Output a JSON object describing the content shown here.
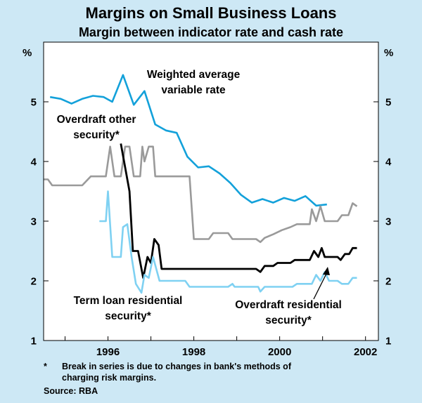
{
  "titles": {
    "title": "Margins on Small Business Loans",
    "subtitle": "Margin between indicator rate and cash rate"
  },
  "footnote": {
    "marker": "*",
    "line1": "Break in series is due to changes in bank's methods of",
    "line2": "charging risk margins."
  },
  "source": "Source: RBA",
  "colors": {
    "background": "#cde8f5",
    "plot_background": "#ffffff",
    "weighted": "#13a1da",
    "overdraft_other": "#9a9a9a",
    "overdraft_residential": "#000000",
    "term_loan_residential": "#7fd1f2"
  },
  "chart_data": {
    "type": "line",
    "title": "Margins on Small Business Loans",
    "subtitle": "Margin between indicator rate and cash rate",
    "ylabel_left": "%",
    "ylabel_right": "%",
    "ylim": [
      1,
      6
    ],
    "yticks": [
      1,
      2,
      3,
      4,
      5
    ],
    "xlim": [
      1994.5,
      2002.3
    ],
    "xticks": [
      1996,
      1998,
      2000,
      2002
    ],
    "grid": false,
    "series": [
      {
        "name": "Weighted average variable rate",
        "label_lines": [
          "Weighted average",
          "variable rate"
        ],
        "color_key": "weighted",
        "points": [
          [
            1994.65,
            5.08
          ],
          [
            1994.9,
            5.05
          ],
          [
            1995.15,
            4.97
          ],
          [
            1995.4,
            5.05
          ],
          [
            1995.65,
            5.1
          ],
          [
            1995.9,
            5.08
          ],
          [
            1996.1,
            5.0
          ],
          [
            1996.35,
            5.45
          ],
          [
            1996.6,
            4.95
          ],
          [
            1996.85,
            5.18
          ],
          [
            1997.1,
            4.62
          ],
          [
            1997.35,
            4.52
          ],
          [
            1997.6,
            4.48
          ],
          [
            1997.85,
            4.08
          ],
          [
            1998.1,
            3.9
          ],
          [
            1998.35,
            3.92
          ],
          [
            1998.6,
            3.8
          ],
          [
            1998.85,
            3.64
          ],
          [
            1999.1,
            3.44
          ],
          [
            1999.35,
            3.31
          ],
          [
            1999.6,
            3.37
          ],
          [
            1999.85,
            3.31
          ],
          [
            2000.1,
            3.39
          ],
          [
            2000.35,
            3.34
          ],
          [
            2000.6,
            3.42
          ],
          [
            2000.85,
            3.26
          ],
          [
            2001.1,
            3.28
          ]
        ]
      },
      {
        "name": "Overdraft other security*",
        "label_lines": [
          "Overdraft other",
          "security*"
        ],
        "color_key": "overdraft_other",
        "points": [
          [
            1994.5,
            3.7
          ],
          [
            1994.6,
            3.7
          ],
          [
            1994.7,
            3.6
          ],
          [
            1995.4,
            3.6
          ],
          [
            1995.6,
            3.75
          ],
          [
            1995.95,
            3.75
          ],
          [
            1996.05,
            4.25
          ],
          [
            1996.15,
            3.75
          ],
          [
            1996.3,
            3.75
          ],
          [
            1996.4,
            4.25
          ],
          [
            1996.5,
            4.25
          ],
          [
            1996.6,
            3.75
          ],
          [
            1996.75,
            3.75
          ],
          [
            1996.8,
            4.25
          ],
          [
            1996.85,
            4.0
          ],
          [
            1996.95,
            4.25
          ],
          [
            1997.05,
            4.25
          ],
          [
            1997.1,
            3.75
          ],
          [
            1997.9,
            3.75
          ],
          [
            1998.0,
            2.7
          ],
          [
            1998.35,
            2.7
          ],
          [
            1998.45,
            2.8
          ],
          [
            1998.8,
            2.8
          ],
          [
            1998.9,
            2.7
          ],
          [
            1999.45,
            2.7
          ],
          [
            1999.55,
            2.65
          ],
          [
            1999.65,
            2.72
          ],
          [
            1999.85,
            2.78
          ],
          [
            2000.05,
            2.85
          ],
          [
            2000.25,
            2.9
          ],
          [
            2000.4,
            2.95
          ],
          [
            2000.7,
            2.95
          ],
          [
            2000.75,
            3.2
          ],
          [
            2000.85,
            3.0
          ],
          [
            2000.95,
            3.25
          ],
          [
            2001.05,
            3.0
          ],
          [
            2001.35,
            3.0
          ],
          [
            2001.45,
            3.1
          ],
          [
            2001.6,
            3.1
          ],
          [
            2001.7,
            3.3
          ],
          [
            2001.8,
            3.25
          ]
        ]
      },
      {
        "name": "Overdraft residential security*",
        "label_lines": [
          "Overdraft residential",
          "security*"
        ],
        "color_key": "overdraft_residential",
        "points": [
          [
            1996.3,
            4.3
          ],
          [
            1996.5,
            3.5
          ],
          [
            1996.58,
            2.5
          ],
          [
            1996.7,
            2.5
          ],
          [
            1996.82,
            2.05
          ],
          [
            1996.92,
            2.4
          ],
          [
            1997.0,
            2.3
          ],
          [
            1997.08,
            2.7
          ],
          [
            1997.18,
            2.6
          ],
          [
            1997.25,
            2.2
          ],
          [
            1999.45,
            2.2
          ],
          [
            1999.55,
            2.15
          ],
          [
            1999.65,
            2.25
          ],
          [
            1999.85,
            2.25
          ],
          [
            1999.95,
            2.3
          ],
          [
            2000.25,
            2.3
          ],
          [
            2000.35,
            2.35
          ],
          [
            2000.7,
            2.35
          ],
          [
            2000.8,
            2.5
          ],
          [
            2000.9,
            2.4
          ],
          [
            2000.98,
            2.55
          ],
          [
            2001.05,
            2.4
          ],
          [
            2001.35,
            2.4
          ],
          [
            2001.42,
            2.35
          ],
          [
            2001.52,
            2.45
          ],
          [
            2001.62,
            2.45
          ],
          [
            2001.7,
            2.55
          ],
          [
            2001.8,
            2.55
          ]
        ]
      },
      {
        "name": "Term loan residential security*",
        "label_lines": [
          "Term loan residential",
          "security*"
        ],
        "color_key": "term_loan_residential",
        "points": [
          [
            1995.8,
            3.0
          ],
          [
            1995.95,
            3.0
          ],
          [
            1996.0,
            3.5
          ],
          [
            1996.1,
            2.4
          ],
          [
            1996.3,
            2.4
          ],
          [
            1996.35,
            2.9
          ],
          [
            1996.45,
            2.95
          ],
          [
            1996.55,
            2.4
          ],
          [
            1996.65,
            1.95
          ],
          [
            1996.78,
            1.8
          ],
          [
            1996.85,
            2.1
          ],
          [
            1996.95,
            2.05
          ],
          [
            1997.05,
            2.4
          ],
          [
            1997.2,
            2.0
          ],
          [
            1997.8,
            2.0
          ],
          [
            1997.9,
            1.9
          ],
          [
            1998.8,
            1.9
          ],
          [
            1998.9,
            1.95
          ],
          [
            1998.95,
            1.9
          ],
          [
            1999.5,
            1.9
          ],
          [
            1999.55,
            1.82
          ],
          [
            1999.65,
            1.9
          ],
          [
            2000.3,
            1.9
          ],
          [
            2000.4,
            1.95
          ],
          [
            2000.75,
            1.95
          ],
          [
            2000.85,
            2.1
          ],
          [
            2000.95,
            2.0
          ],
          [
            2001.05,
            2.15
          ],
          [
            2001.15,
            2.0
          ],
          [
            2001.35,
            2.0
          ],
          [
            2001.45,
            1.95
          ],
          [
            2001.6,
            1.95
          ],
          [
            2001.7,
            2.05
          ],
          [
            2001.8,
            2.05
          ]
        ]
      }
    ]
  }
}
